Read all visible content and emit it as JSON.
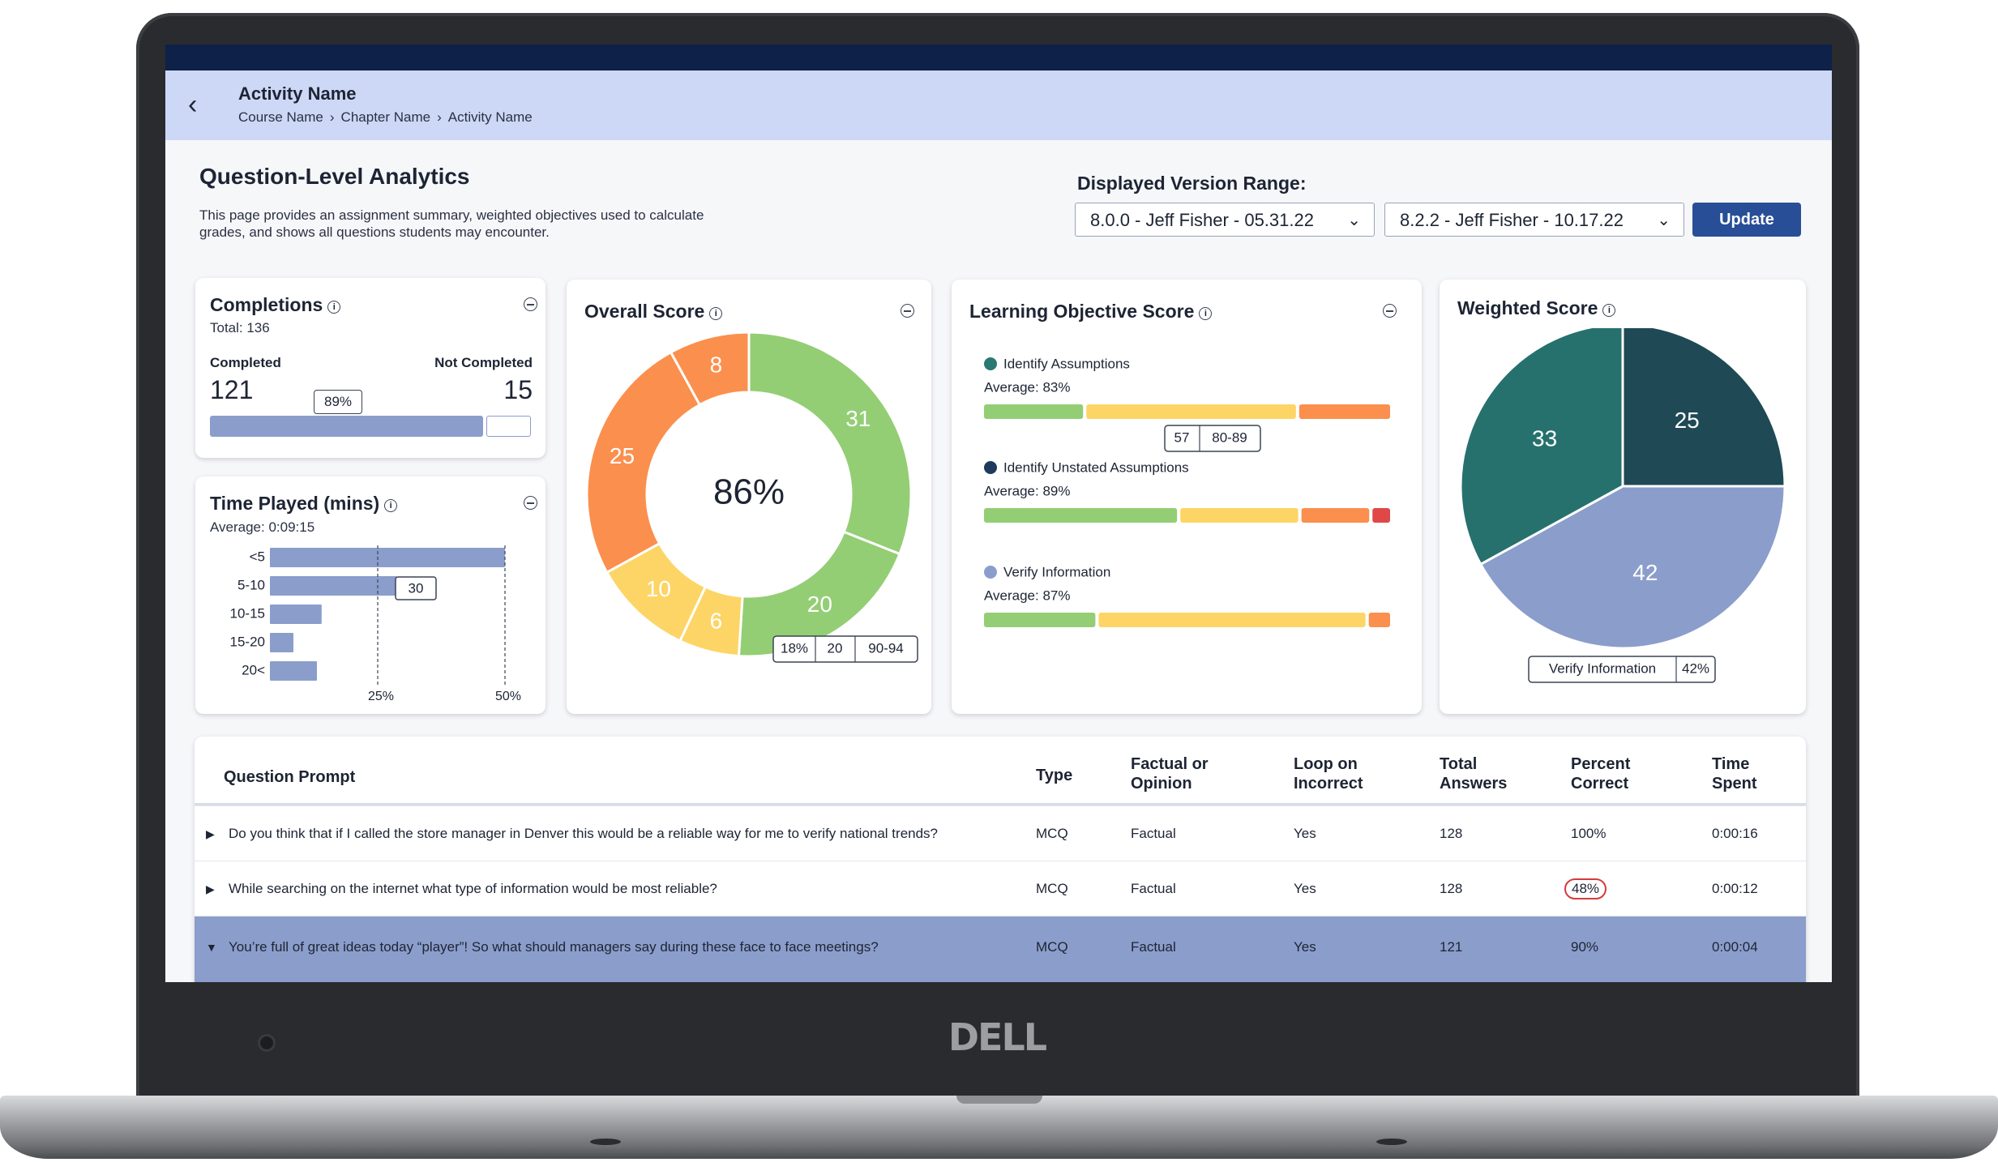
{
  "header": {
    "title": "Activity Name",
    "breadcrumbs": [
      "Course Name",
      "Chapter Name",
      "Activity Name"
    ]
  },
  "page": {
    "title": "Question-Level Analytics",
    "description": "This page provides an assignment summary,  weighted objectives used to calculate grades, and shows all questions students may encounter."
  },
  "version_range": {
    "label": "Displayed Version Range:",
    "from": "8.0.0 - Jeff Fisher - 05.31.22",
    "to": "8.2.2 - Jeff Fisher - 10.17.22",
    "update_label": "Update"
  },
  "completions": {
    "title": "Completions",
    "total": "Total: 136",
    "completed_label": "Completed",
    "completed": "121",
    "not_completed_label": "Not Completed",
    "not_completed": "15",
    "percent_label": "89%",
    "fraction": 0.89
  },
  "time_played": {
    "title": "Time Played (mins)",
    "average": "Average: 0:09:15",
    "tooltip": "30",
    "axis_labels": [
      "25%",
      "50%"
    ]
  },
  "overall_score": {
    "title": "Overall Score",
    "center": "86%",
    "tooltip": [
      "18%",
      "20",
      "90-94"
    ]
  },
  "learning_objective": {
    "title": "Learning Objective Score",
    "tooltip": [
      "57",
      "80-89"
    ],
    "items": [
      {
        "name": "Identify Assumptions",
        "average": "Average: 83%",
        "color": "#2a7a73"
      },
      {
        "name": "Identify Unstated Assumptions",
        "average": "Average: 89%",
        "color": "#1e3a5f"
      },
      {
        "name": "Verify Information",
        "average": "Average: 87%",
        "color": "#8b9ecb"
      }
    ]
  },
  "weighted_score": {
    "title": "Weighted Score",
    "tooltip": [
      "Verify Information",
      "42%"
    ]
  },
  "chart_data": [
    {
      "type": "bar",
      "title": "Time Played (mins)",
      "categories": [
        "<5",
        "5-10",
        "10-15",
        "15-20",
        "20<"
      ],
      "values": [
        50,
        27,
        11,
        5,
        10
      ],
      "orientation": "horizontal",
      "ticks": [
        "25%",
        "50%"
      ]
    },
    {
      "type": "pie",
      "title": "Overall Score",
      "donut": true,
      "labels": [
        "31",
        "20",
        "6",
        "10",
        "25",
        "8"
      ],
      "values": [
        31,
        20,
        6,
        10,
        25,
        8
      ],
      "colors": [
        "#93cd74",
        "#93cd74",
        "#fdd566",
        "#fdd566",
        "#fb8f4d",
        "#fb8f4d"
      ]
    },
    {
      "type": "pie",
      "title": "Weighted Score",
      "labels": [
        "25",
        "42",
        "33"
      ],
      "values": [
        25,
        42,
        33
      ],
      "colors": [
        "#1f4a55",
        "#8b9ecb",
        "#26716d"
      ]
    },
    {
      "type": "bar",
      "title": "Learning Objective Score",
      "stacked": true,
      "series": [
        {
          "name": "Identify Assumptions",
          "segments": [
            25,
            52,
            23
          ]
        },
        {
          "name": "Identify Unstated Assumptions",
          "segments": [
            47,
            29,
            17,
            5
          ]
        },
        {
          "name": "Verify Information",
          "segments": [
            28,
            66,
            6
          ]
        }
      ],
      "segment_colors": [
        "#93cd74",
        "#fdd566",
        "#fb8f4d",
        "#e04848"
      ]
    }
  ],
  "table": {
    "headers": {
      "prompt": "Question Prompt",
      "type": "Type",
      "factual_1": "Factual or",
      "factual_2": "Opinion",
      "loop_1": "Loop on",
      "loop_2": "Incorrect",
      "total_1": "Total",
      "total_2": "Answers",
      "percent_1": "Percent",
      "percent_2": "Correct",
      "time_1": "Time",
      "time_2": "Spent"
    },
    "rows": [
      {
        "prompt": "Do you think that if I called the store manager in Denver this would be a reliable way for me to verify national trends?",
        "type": "MCQ",
        "factual": "Factual",
        "loop": "Yes",
        "total": "128",
        "percent": "100%",
        "time": "0:00:16"
      },
      {
        "prompt": "While searching on the internet what type of information would be most reliable?",
        "type": "MCQ",
        "factual": "Factual",
        "loop": "Yes",
        "total": "128",
        "percent": "48%",
        "time": "0:00:12"
      },
      {
        "prompt": "You’re full of great ideas today “player”! So what should managers say during these face to face meetings?",
        "type": "MCQ",
        "factual": "Factual",
        "loop": "Yes",
        "total": "121",
        "percent": "90%",
        "time": "0:00:04"
      }
    ]
  },
  "brand": "DELL"
}
